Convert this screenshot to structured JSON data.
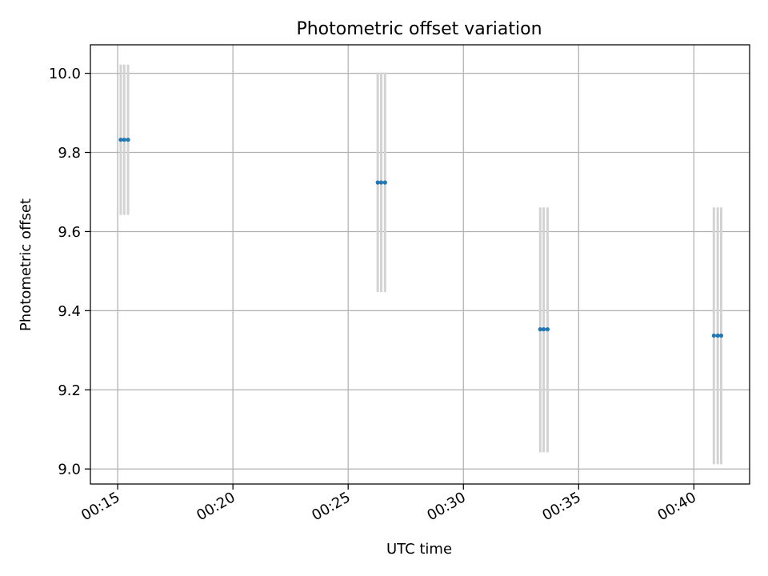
{
  "chart_data": {
    "type": "scatter",
    "title": "Photometric offset variation",
    "xlabel": "UTC time",
    "ylabel": "Photometric offset",
    "x_axis_type": "time",
    "xlim": [
      "00:13:49",
      "00:42:25"
    ],
    "ylim": [
      8.962,
      10.072
    ],
    "x_ticks": [
      "00:15",
      "00:20",
      "00:25",
      "00:30",
      "00:35",
      "00:40"
    ],
    "y_ticks": [
      "9.0",
      "9.2",
      "9.4",
      "9.6",
      "9.8",
      "10.0"
    ],
    "grid": true,
    "series": [
      {
        "points": [
          {
            "x": "00:15:08",
            "y": 9.832,
            "err_low": 9.642,
            "err_high": 10.022
          },
          {
            "x": "00:15:17",
            "y": 9.832,
            "err_low": 9.642,
            "err_high": 10.022
          },
          {
            "x": "00:15:27",
            "y": 9.832,
            "err_low": 9.642,
            "err_high": 10.022
          },
          {
            "x": "00:26:17",
            "y": 9.724,
            "err_low": 9.447,
            "err_high": 10.002
          },
          {
            "x": "00:26:26",
            "y": 9.724,
            "err_low": 9.447,
            "err_high": 10.002
          },
          {
            "x": "00:26:36",
            "y": 9.724,
            "err_low": 9.447,
            "err_high": 10.002
          },
          {
            "x": "00:33:20",
            "y": 9.353,
            "err_low": 9.042,
            "err_high": 9.661
          },
          {
            "x": "00:33:29",
            "y": 9.353,
            "err_low": 9.042,
            "err_high": 9.661
          },
          {
            "x": "00:33:39",
            "y": 9.353,
            "err_low": 9.042,
            "err_high": 9.661
          },
          {
            "x": "00:40:52",
            "y": 9.337,
            "err_low": 9.012,
            "err_high": 9.661
          },
          {
            "x": "00:41:02",
            "y": 9.337,
            "err_low": 9.012,
            "err_high": 9.661
          },
          {
            "x": "00:41:11",
            "y": 9.337,
            "err_low": 9.012,
            "err_high": 9.661
          }
        ]
      }
    ],
    "colors": {
      "marker": "#1f77b4",
      "errorbar": "#d3d3d3",
      "grid": "#b0b0b0",
      "axes": "#000000"
    }
  }
}
